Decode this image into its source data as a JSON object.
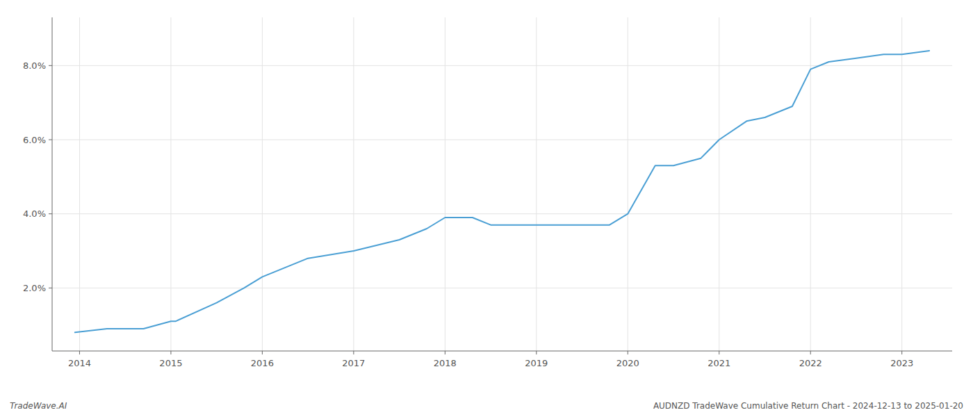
{
  "chart_data": {
    "type": "line",
    "x": [
      2013.95,
      2014.3,
      2014.7,
      2015.0,
      2015.05,
      2015.5,
      2015.8,
      2016.0,
      2016.5,
      2017.0,
      2017.5,
      2017.8,
      2018.0,
      2018.3,
      2018.5,
      2019.0,
      2019.3,
      2019.5,
      2019.8,
      2020.0,
      2020.3,
      2020.5,
      2020.8,
      2021.0,
      2021.3,
      2021.5,
      2021.8,
      2022.0,
      2022.2,
      2022.5,
      2022.8,
      2023.0,
      2023.3
    ],
    "values": [
      0.008,
      0.009,
      0.009,
      0.011,
      0.011,
      0.016,
      0.02,
      0.023,
      0.028,
      0.03,
      0.033,
      0.036,
      0.039,
      0.039,
      0.037,
      0.037,
      0.037,
      0.037,
      0.037,
      0.04,
      0.053,
      0.053,
      0.055,
      0.06,
      0.065,
      0.066,
      0.069,
      0.079,
      0.081,
      0.082,
      0.083,
      0.083,
      0.084
    ],
    "color": "#4a9fd4",
    "xlim": [
      2013.7,
      2023.55
    ],
    "ylim": [
      0.003,
      0.093
    ],
    "xticks": [
      2014,
      2015,
      2016,
      2017,
      2018,
      2019,
      2020,
      2021,
      2022,
      2023
    ],
    "yticks": [
      {
        "value": 0.02,
        "label": "2.0%"
      },
      {
        "value": 0.04,
        "label": "4.0%"
      },
      {
        "value": 0.06,
        "label": "6.0%"
      },
      {
        "value": 0.08,
        "label": "8.0%"
      }
    ],
    "grid": true,
    "annotations": [
      "TradeWave.AI",
      "AUDNZD TradeWave Cumulative Return Chart - 2024-12-13 to 2025-01-20"
    ]
  }
}
